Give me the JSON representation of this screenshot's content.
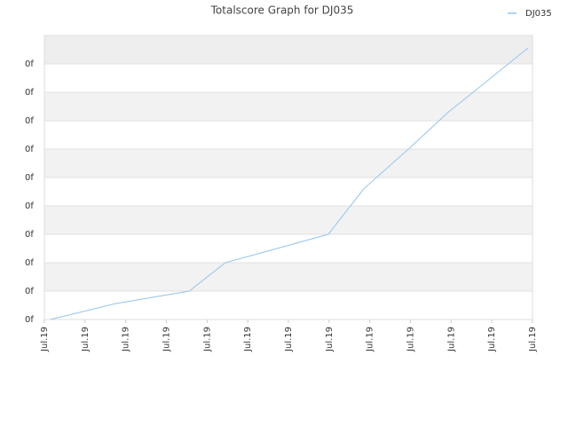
{
  "chart_data": {
    "type": "line",
    "title": "Totalscore Graph for DJ035",
    "series": [
      {
        "name": "DJ035",
        "color": "#92c5f0",
        "x": [
          0.15,
          1.75,
          3.56,
          4.45,
          6.98,
          7.85,
          8.95,
          9.93,
          11.89
        ],
        "values": [
          0,
          0.56,
          1.0,
          2.0,
          3.0,
          4.6,
          6.0,
          7.3,
          9.56
        ]
      }
    ],
    "xlim": [
      0,
      12
    ],
    "xticks": [
      {
        "value": 0,
        "label": "Jul.19"
      },
      {
        "value": 1,
        "label": "Jul.19"
      },
      {
        "value": 2,
        "label": "Jul.19"
      },
      {
        "value": 3,
        "label": "Jul.19"
      },
      {
        "value": 4,
        "label": "Jul.19"
      },
      {
        "value": 5,
        "label": "Jul.19"
      },
      {
        "value": 6,
        "label": "Jul.19"
      },
      {
        "value": 7,
        "label": "Jul.19"
      },
      {
        "value": 8,
        "label": "Jul.19"
      },
      {
        "value": 9,
        "label": "Jul.19"
      },
      {
        "value": 10,
        "label": "Jul.19"
      },
      {
        "value": 11,
        "label": "Jul.19"
      },
      {
        "value": 12,
        "label": "Jul.19"
      }
    ],
    "ylim": [
      0,
      10
    ],
    "yticks": [
      {
        "value": 0,
        "label": "0f"
      },
      {
        "value": 1,
        "label": "0f"
      },
      {
        "value": 2,
        "label": "0f"
      },
      {
        "value": 3,
        "label": "0f"
      },
      {
        "value": 4,
        "label": "0f"
      },
      {
        "value": 5,
        "label": "0f"
      },
      {
        "value": 6,
        "label": "0f"
      },
      {
        "value": 7,
        "label": "0f"
      },
      {
        "value": 8,
        "label": "0f"
      },
      {
        "value": 9,
        "label": "0f"
      }
    ],
    "grid": true,
    "legend": "top-right"
  }
}
